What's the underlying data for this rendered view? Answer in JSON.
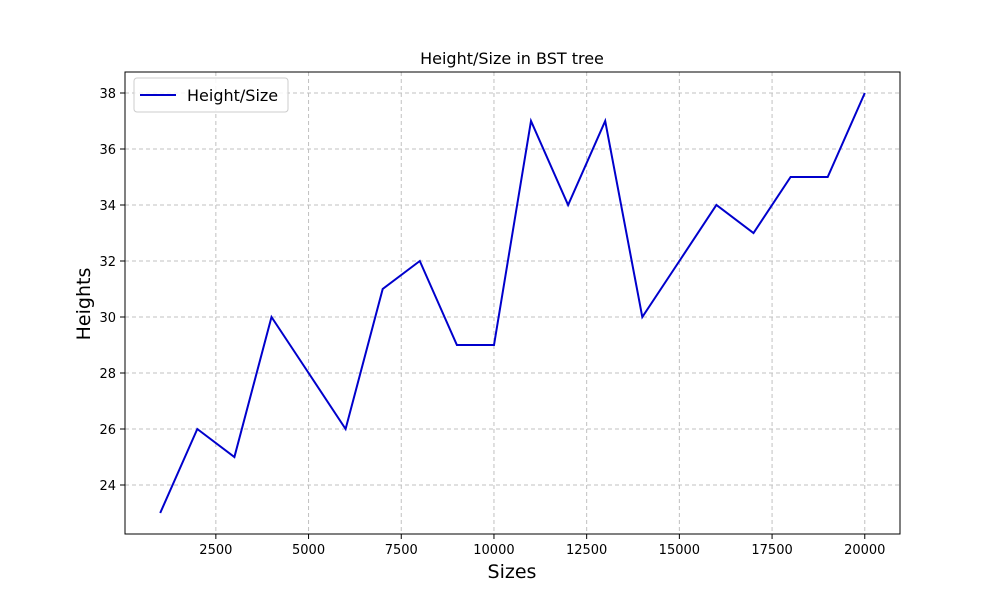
{
  "chart_data": {
    "type": "line",
    "title": "Height/Size in BST tree",
    "xlabel": "Sizes",
    "ylabel": "Heights",
    "x": [
      1000,
      2000,
      3000,
      4000,
      5000,
      6000,
      7000,
      8000,
      9000,
      10000,
      11000,
      12000,
      13000,
      14000,
      15000,
      16000,
      17000,
      18000,
      19000,
      20000
    ],
    "series": [
      {
        "name": "Height/Size",
        "values": [
          23,
          26,
          25,
          30,
          28,
          26,
          31,
          32,
          29,
          29,
          37,
          34,
          37,
          30,
          32,
          34,
          33,
          35,
          35,
          38
        ],
        "color": "#0000cc"
      }
    ],
    "xlim": [
      50,
      20950
    ],
    "ylim": [
      22.25,
      38.75
    ],
    "xticks": [
      2500,
      5000,
      7500,
      10000,
      12500,
      15000,
      17500,
      20000
    ],
    "xtick_labels": [
      "2500",
      "5000",
      "7500",
      "10000",
      "12500",
      "15000",
      "17500",
      "20000"
    ],
    "yticks": [
      24,
      26,
      28,
      30,
      32,
      34,
      36,
      38
    ],
    "ytick_labels": [
      "24",
      "26",
      "28",
      "30",
      "32",
      "34",
      "36",
      "38"
    ],
    "grid": true,
    "grid_color": "#c0c0c0",
    "legend_placement": "upper-left"
  }
}
